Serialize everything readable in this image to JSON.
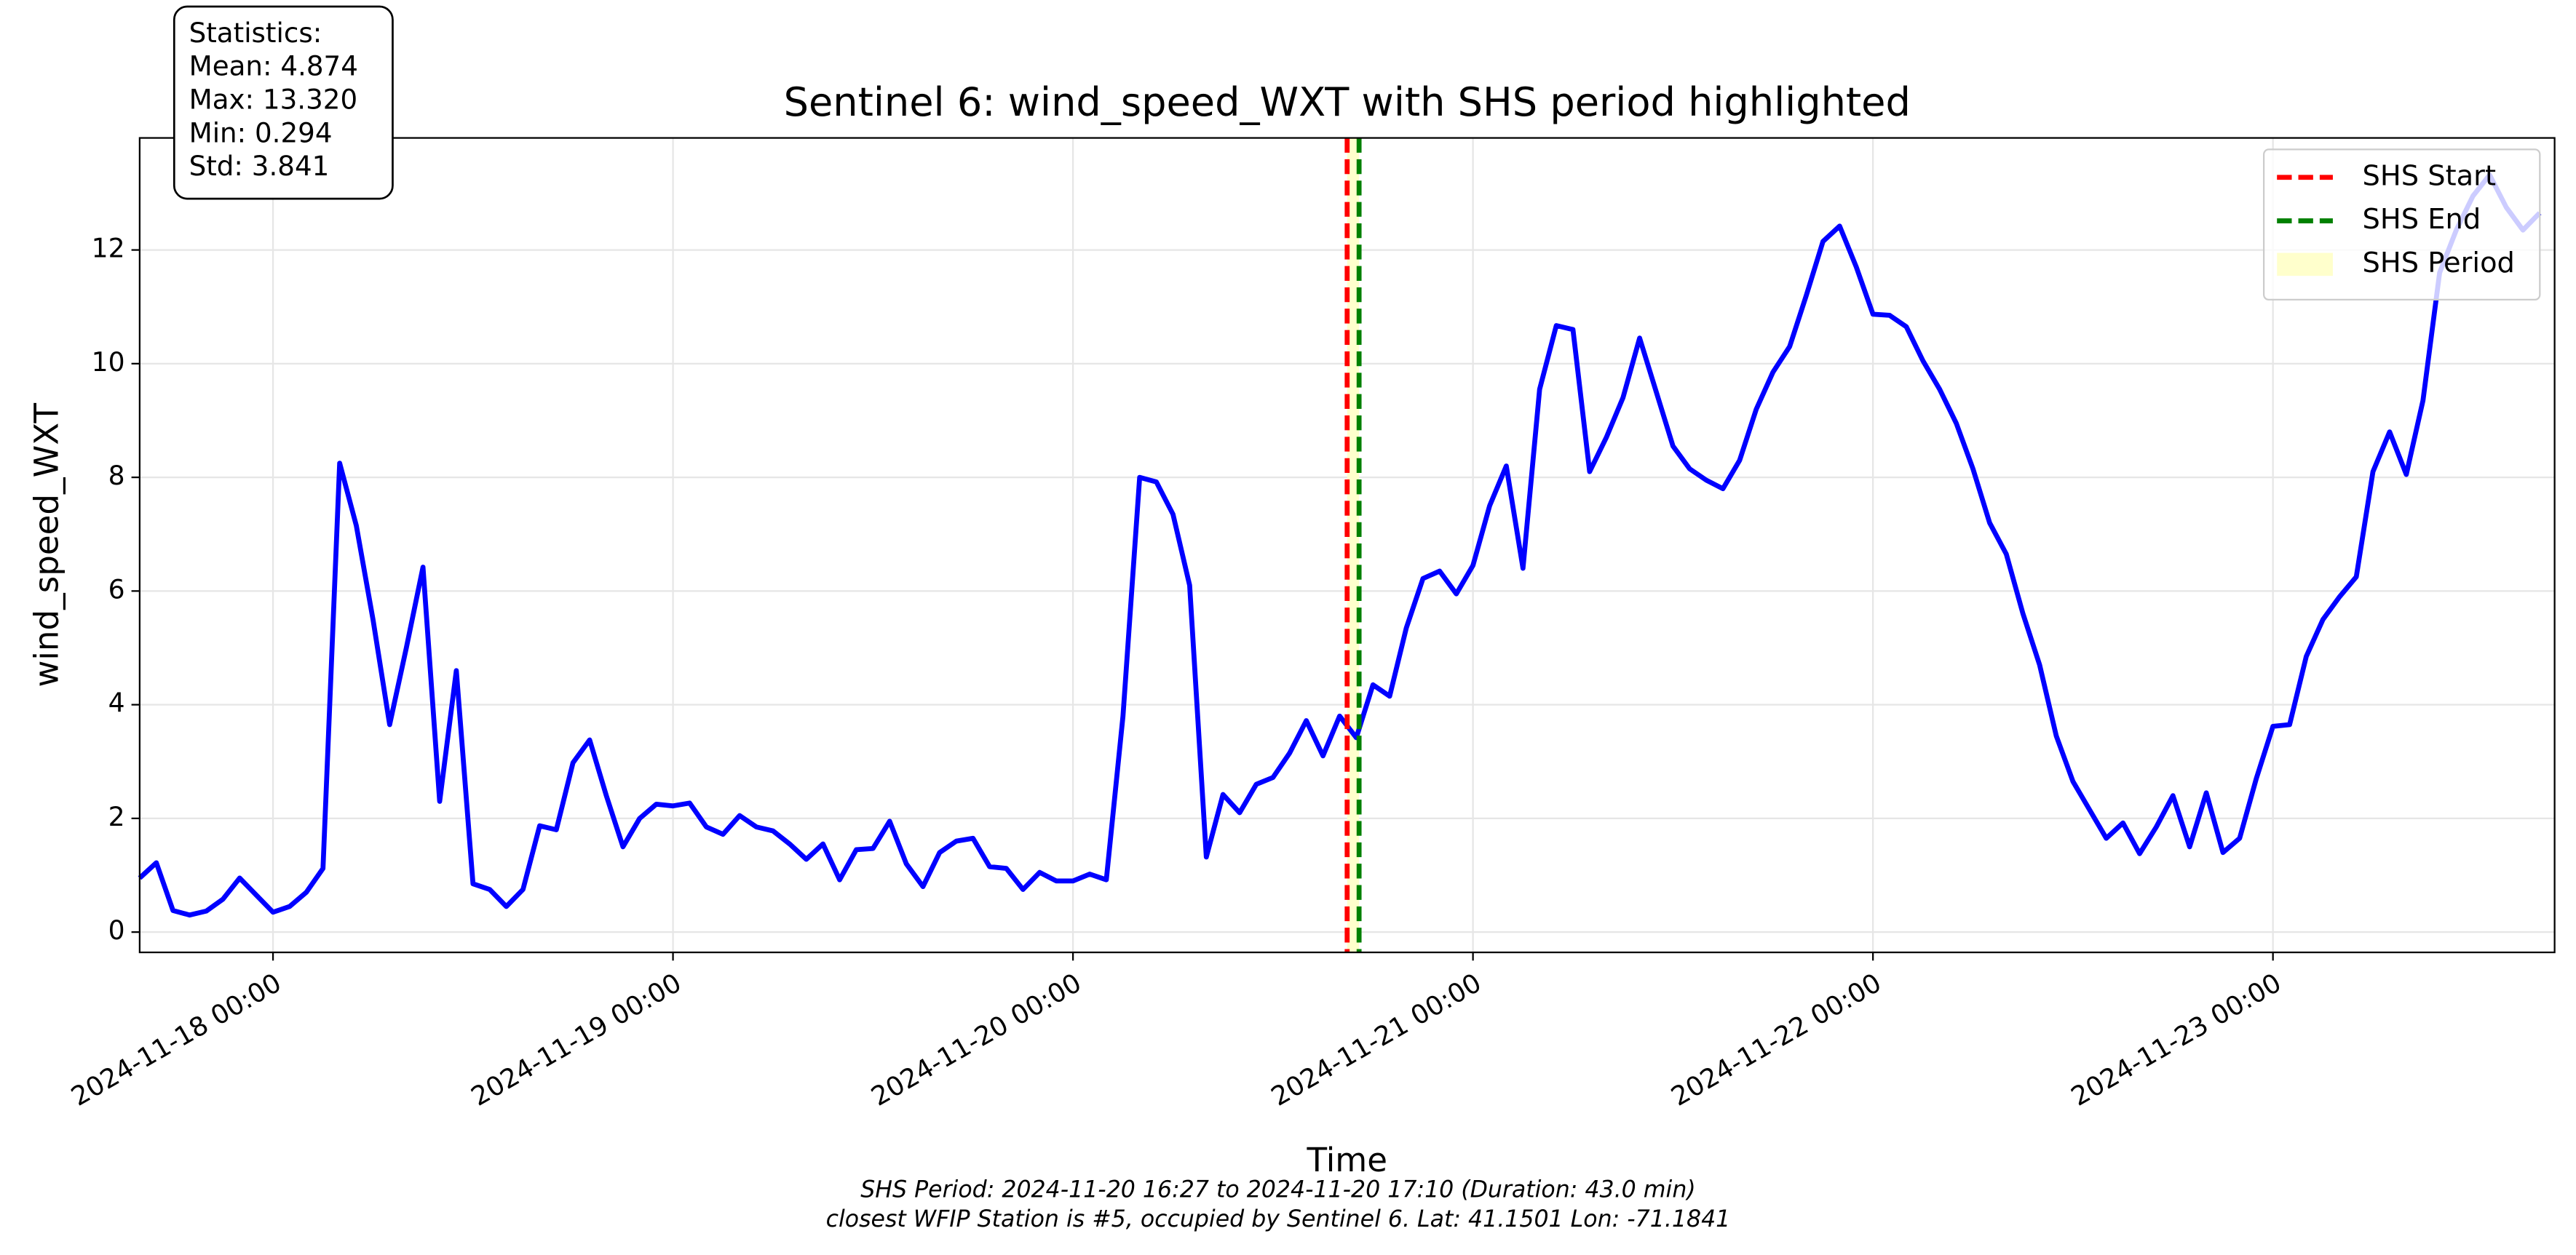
{
  "chart_data": {
    "type": "line",
    "title": "Sentinel 6: wind_speed_WXT with SHS period highlighted",
    "xlabel": "Time",
    "ylabel": "wind_speed_WXT",
    "stats_box": [
      "Statistics:",
      "Mean: 4.874",
      "Max: 13.320",
      "Min: 0.294",
      "Std: 3.841"
    ],
    "footnotes": [
      "SHS Period: 2024-11-20 16:27 to 2024-11-20 17:10 (Duration: 43.0 min)",
      "closest WFIP Station is #5, occupied by Sentinel 6. Lat: 41.1501 Lon: -71.1841"
    ],
    "x": [
      "2024-11-17 16:00",
      "2024-11-17 17:00",
      "2024-11-17 18:00",
      "2024-11-17 19:00",
      "2024-11-17 20:00",
      "2024-11-17 21:00",
      "2024-11-17 22:00",
      "2024-11-17 23:00",
      "2024-11-18 00:00",
      "2024-11-18 01:00",
      "2024-11-18 02:00",
      "2024-11-18 03:00",
      "2024-11-18 04:00",
      "2024-11-18 05:00",
      "2024-11-18 06:00",
      "2024-11-18 07:00",
      "2024-11-18 08:00",
      "2024-11-18 09:00",
      "2024-11-18 10:00",
      "2024-11-18 11:00",
      "2024-11-18 12:00",
      "2024-11-18 13:00",
      "2024-11-18 14:00",
      "2024-11-18 15:00",
      "2024-11-18 16:00",
      "2024-11-18 17:00",
      "2024-11-18 18:00",
      "2024-11-18 19:00",
      "2024-11-18 20:00",
      "2024-11-18 21:00",
      "2024-11-18 22:00",
      "2024-11-18 23:00",
      "2024-11-19 00:00",
      "2024-11-19 01:00",
      "2024-11-19 02:00",
      "2024-11-19 03:00",
      "2024-11-19 04:00",
      "2024-11-19 05:00",
      "2024-11-19 06:00",
      "2024-11-19 07:00",
      "2024-11-19 08:00",
      "2024-11-19 09:00",
      "2024-11-19 10:00",
      "2024-11-19 11:00",
      "2024-11-19 12:00",
      "2024-11-19 13:00",
      "2024-11-19 14:00",
      "2024-11-19 15:00",
      "2024-11-19 16:00",
      "2024-11-19 17:00",
      "2024-11-19 18:00",
      "2024-11-19 19:00",
      "2024-11-19 20:00",
      "2024-11-19 21:00",
      "2024-11-19 22:00",
      "2024-11-19 23:00",
      "2024-11-20 00:00",
      "2024-11-20 01:00",
      "2024-11-20 02:00",
      "2024-11-20 03:00",
      "2024-11-20 04:00",
      "2024-11-20 05:00",
      "2024-11-20 06:00",
      "2024-11-20 07:00",
      "2024-11-20 08:00",
      "2024-11-20 09:00",
      "2024-11-20 10:00",
      "2024-11-20 11:00",
      "2024-11-20 12:00",
      "2024-11-20 13:00",
      "2024-11-20 14:00",
      "2024-11-20 15:00",
      "2024-11-20 16:00",
      "2024-11-20 17:00",
      "2024-11-20 18:00",
      "2024-11-20 19:00",
      "2024-11-20 20:00",
      "2024-11-20 21:00",
      "2024-11-20 22:00",
      "2024-11-20 23:00",
      "2024-11-21 00:00",
      "2024-11-21 01:00",
      "2024-11-21 02:00",
      "2024-11-21 03:00",
      "2024-11-21 04:00",
      "2024-11-21 05:00",
      "2024-11-21 06:00",
      "2024-11-21 07:00",
      "2024-11-21 08:00",
      "2024-11-21 09:00",
      "2024-11-21 10:00",
      "2024-11-21 11:00",
      "2024-11-21 12:00",
      "2024-11-21 13:00",
      "2024-11-21 14:00",
      "2024-11-21 15:00",
      "2024-11-21 16:00",
      "2024-11-21 17:00",
      "2024-11-21 18:00",
      "2024-11-21 19:00",
      "2024-11-21 20:00",
      "2024-11-21 21:00",
      "2024-11-21 22:00",
      "2024-11-21 23:00",
      "2024-11-22 00:00",
      "2024-11-22 01:00",
      "2024-11-22 02:00",
      "2024-11-22 03:00",
      "2024-11-22 04:00",
      "2024-11-22 05:00",
      "2024-11-22 06:00",
      "2024-11-22 07:00",
      "2024-11-22 08:00",
      "2024-11-22 09:00",
      "2024-11-22 10:00",
      "2024-11-22 11:00",
      "2024-11-22 12:00",
      "2024-11-22 13:00",
      "2024-11-22 14:00",
      "2024-11-22 15:00",
      "2024-11-22 16:00",
      "2024-11-22 17:00",
      "2024-11-22 18:00",
      "2024-11-22 19:00",
      "2024-11-22 20:00",
      "2024-11-22 21:00",
      "2024-11-22 22:00",
      "2024-11-22 23:00",
      "2024-11-23 00:00",
      "2024-11-23 01:00",
      "2024-11-23 02:00",
      "2024-11-23 03:00",
      "2024-11-23 04:00",
      "2024-11-23 05:00",
      "2024-11-23 06:00",
      "2024-11-23 07:00",
      "2024-11-23 08:00",
      "2024-11-23 09:00",
      "2024-11-23 10:00",
      "2024-11-23 11:00",
      "2024-11-23 12:00",
      "2024-11-23 13:00",
      "2024-11-23 14:00",
      "2024-11-23 15:00",
      "2024-11-23 16:00"
    ],
    "series": [
      {
        "name": "wind_speed_WXT",
        "color": "#0000ff",
        "values": [
          0.95,
          1.22,
          0.38,
          0.3,
          0.37,
          0.58,
          0.95,
          0.65,
          0.35,
          0.45,
          0.7,
          1.12,
          8.25,
          7.15,
          5.5,
          3.65,
          5.0,
          6.42,
          2.3,
          4.6,
          0.85,
          0.75,
          0.45,
          0.75,
          1.87,
          1.8,
          2.98,
          3.38,
          2.4,
          1.5,
          2.0,
          2.25,
          2.22,
          2.27,
          1.85,
          1.72,
          2.05,
          1.85,
          1.78,
          1.55,
          1.28,
          1.55,
          0.92,
          1.45,
          1.47,
          1.95,
          1.2,
          0.8,
          1.4,
          1.6,
          1.65,
          1.15,
          1.12,
          0.75,
          1.05,
          0.9,
          0.9,
          1.02,
          0.92,
          3.8,
          8.0,
          7.92,
          7.35,
          6.1,
          1.32,
          2.42,
          2.1,
          2.6,
          2.72,
          3.15,
          3.72,
          3.1,
          3.8,
          3.42,
          4.35,
          4.15,
          5.35,
          6.22,
          6.35,
          5.95,
          6.45,
          7.5,
          8.2,
          6.4,
          9.55,
          10.67,
          10.6,
          8.1,
          8.7,
          9.4,
          10.45,
          9.5,
          8.55,
          8.15,
          7.95,
          7.8,
          8.3,
          9.2,
          9.85,
          10.3,
          11.2,
          12.15,
          12.42,
          11.7,
          10.87,
          10.85,
          10.65,
          10.05,
          9.55,
          8.95,
          8.15,
          7.2,
          6.65,
          5.6,
          4.7,
          3.45,
          2.65,
          2.15,
          1.65,
          1.92,
          1.38,
          1.85,
          2.4,
          1.5,
          2.45,
          1.4,
          1.65,
          2.7,
          3.62,
          3.65,
          4.85,
          5.5,
          5.9,
          6.25,
          8.1,
          8.8,
          8.05,
          9.35,
          11.6,
          12.35,
          12.95,
          13.32,
          12.75,
          12.35,
          12.65
        ]
      }
    ],
    "vlines": [
      {
        "name": "SHS Start",
        "color": "#ff0000",
        "x": "2024-11-20 16:27"
      },
      {
        "name": "SHS End",
        "color": "#008000",
        "x": "2024-11-20 17:10"
      }
    ],
    "spans": [
      {
        "name": "SHS Period",
        "color": "#ffffcc",
        "x": [
          "2024-11-20 16:27",
          "2024-11-20 17:10"
        ]
      }
    ],
    "xlim": [
      "2024-11-17 16:00",
      "2024-11-23 16:54"
    ],
    "xticks": [
      "2024-11-18 00:00",
      "2024-11-19 00:00",
      "2024-11-20 00:00",
      "2024-11-21 00:00",
      "2024-11-22 00:00",
      "2024-11-23 00:00"
    ],
    "ylim": [
      -0.357,
      13.971
    ],
    "yticks": [
      0,
      2,
      4,
      6,
      8,
      10,
      12
    ],
    "grid": true,
    "legend": "upper right"
  }
}
